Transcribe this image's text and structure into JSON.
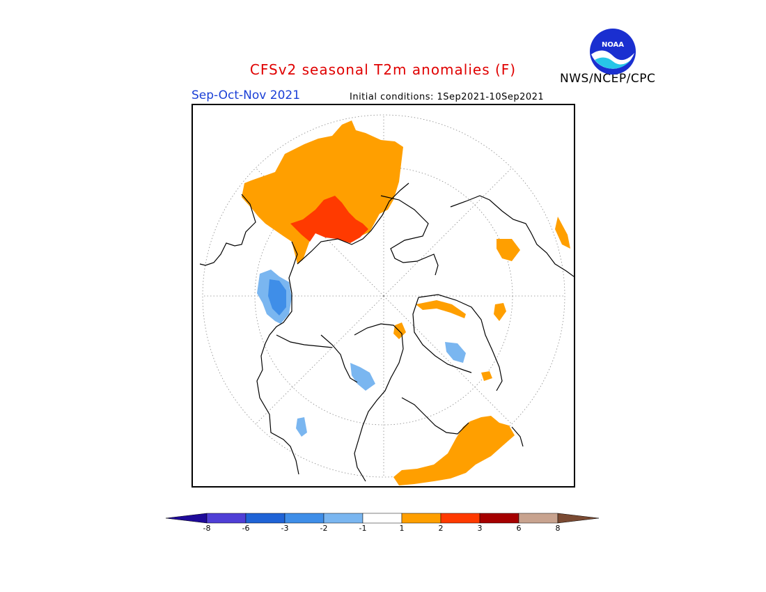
{
  "title": "CFSv2 seasonal T2m anomalies (F)",
  "season": "Sep-Oct-Nov 2021",
  "initial_conditions": "Initial conditions: 1Sep2021-10Sep2021",
  "agency": "NWS/NCEP/CPC",
  "logo_text": "NOAA",
  "legend": {
    "colors": [
      "#1e0a99",
      "#4f3fd6",
      "#1f63d6",
      "#3f8ee8",
      "#7ab6f0",
      "#ffffff",
      "#ff9f00",
      "#ff3a00",
      "#a50000",
      "#c8a38f",
      "#7a4a32"
    ],
    "ticks": [
      "-8",
      "-6",
      "-3",
      "-2",
      "-1",
      "1",
      "2",
      "3",
      "6",
      "8"
    ]
  },
  "colors": {
    "orange": "#ff9f00",
    "red": "#ff3a00",
    "light_blue": "#7ab6f0",
    "mid_blue": "#3f8ee8"
  }
}
